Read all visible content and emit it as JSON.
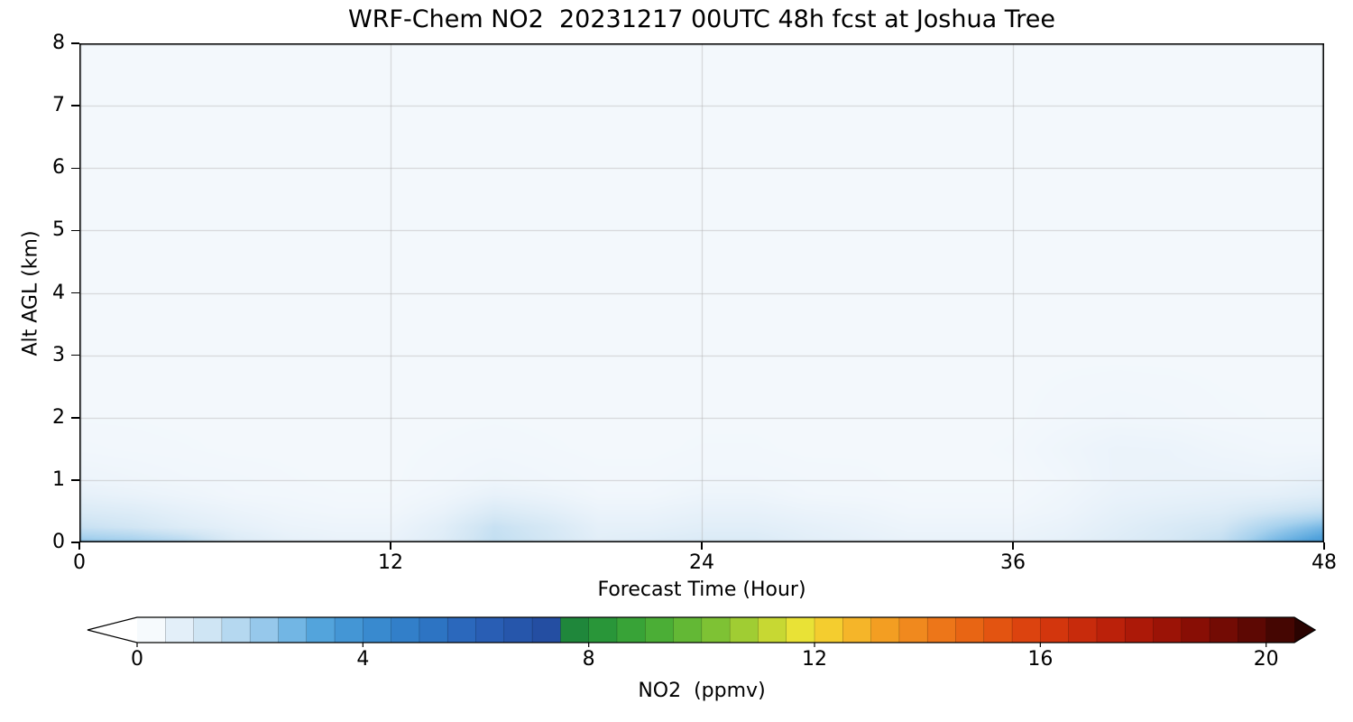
{
  "accent_colors": {
    "plot_background_tint": "#f3f8fc",
    "gridline": "#b4b4b4",
    "axis": "#000000"
  },
  "chart_data": {
    "type": "heatmap",
    "title": "WRF-Chem NO2  20231217 00UTC 48h fcst at Joshua Tree",
    "xlabel": "Forecast Time (Hour)",
    "ylabel": "Alt AGL (km)",
    "colorbar_label": "NO2  (ppmv)",
    "xlim": [
      0,
      48
    ],
    "ylim": [
      0,
      8
    ],
    "x_ticks": [
      0,
      12,
      24,
      36,
      48
    ],
    "y_ticks": [
      0,
      1,
      2,
      3,
      4,
      5,
      6,
      7,
      8
    ],
    "gridlines": {
      "x": [
        12,
        24,
        36
      ],
      "y": [
        1,
        2,
        3,
        4,
        5,
        6,
        7
      ]
    },
    "colorbar_ticks": [
      0,
      4,
      8,
      12,
      16,
      20
    ],
    "colorbar_range": [
      0,
      20.5
    ],
    "colorbar_cell_step": 0.5,
    "colorbar_extend": "both",
    "colormap_stops": [
      [
        0,
        "#ffffff"
      ],
      [
        0.6,
        "#e9f2fa"
      ],
      [
        1.2,
        "#d2e6f4"
      ],
      [
        2,
        "#a8d2ee"
      ],
      [
        2.6,
        "#7cbbe6"
      ],
      [
        3.2,
        "#55a5dd"
      ],
      [
        4,
        "#3c8fd2"
      ],
      [
        5,
        "#2e7ac6"
      ],
      [
        6,
        "#2a62b8"
      ],
      [
        7.49,
        "#234a9e"
      ],
      [
        7.51,
        "#1a7f3c"
      ],
      [
        8.5,
        "#2e9e38"
      ],
      [
        9.5,
        "#55b335"
      ],
      [
        10.5,
        "#8cc733"
      ],
      [
        11.2,
        "#c4d733"
      ],
      [
        11.8,
        "#ece336"
      ],
      [
        12.4,
        "#f6c52d"
      ],
      [
        13.2,
        "#f3a023"
      ],
      [
        14,
        "#ef7f1b"
      ],
      [
        15,
        "#e65c12"
      ],
      [
        16,
        "#d83b0e"
      ],
      [
        17,
        "#c3250b"
      ],
      [
        18,
        "#a41507"
      ],
      [
        19,
        "#7e0c04"
      ],
      [
        20,
        "#520702"
      ],
      [
        21,
        "#1c0201"
      ]
    ],
    "grid": {
      "x_hours": [
        0,
        2,
        4,
        6,
        8,
        10,
        12,
        14,
        16,
        18,
        20,
        22,
        24,
        26,
        28,
        30,
        32,
        34,
        36,
        38,
        40,
        42,
        44,
        46,
        48
      ],
      "y_km": [
        0,
        0.25,
        0.5,
        0.75,
        1.0,
        1.5,
        2.0,
        3.0,
        8.0
      ],
      "values_ppmv": [
        [
          2.4,
          2.2,
          1.8,
          1.0,
          0.7,
          0.6,
          0.6,
          0.9,
          1.5,
          1.2,
          0.8,
          0.9,
          1.0,
          1.0,
          0.8,
          0.7,
          0.6,
          0.6,
          0.6,
          0.7,
          0.9,
          1.1,
          1.5,
          2.7,
          3.7
        ],
        [
          1.4,
          1.2,
          0.9,
          0.7,
          0.55,
          0.5,
          0.5,
          0.8,
          1.4,
          1.1,
          0.7,
          0.7,
          0.8,
          0.8,
          0.7,
          0.6,
          0.5,
          0.5,
          0.5,
          0.6,
          0.8,
          1.0,
          1.2,
          2.0,
          2.7
        ],
        [
          1.0,
          0.9,
          0.7,
          0.55,
          0.45,
          0.4,
          0.4,
          0.6,
          1.0,
          0.8,
          0.55,
          0.55,
          0.65,
          0.65,
          0.55,
          0.5,
          0.4,
          0.4,
          0.4,
          0.5,
          0.7,
          0.8,
          0.9,
          1.2,
          1.5
        ],
        [
          0.7,
          0.6,
          0.5,
          0.4,
          0.38,
          0.35,
          0.35,
          0.45,
          0.65,
          0.55,
          0.4,
          0.4,
          0.5,
          0.5,
          0.4,
          0.38,
          0.35,
          0.35,
          0.35,
          0.45,
          0.6,
          0.65,
          0.7,
          0.75,
          0.9
        ],
        [
          0.5,
          0.45,
          0.4,
          0.38,
          0.35,
          0.33,
          0.33,
          0.38,
          0.45,
          0.4,
          0.36,
          0.36,
          0.4,
          0.4,
          0.37,
          0.36,
          0.33,
          0.33,
          0.33,
          0.4,
          0.55,
          0.57,
          0.57,
          0.55,
          0.65
        ],
        [
          0.38,
          0.36,
          0.35,
          0.33,
          0.33,
          0.33,
          0.33,
          0.35,
          0.37,
          0.35,
          0.33,
          0.33,
          0.35,
          0.35,
          0.33,
          0.33,
          0.33,
          0.33,
          0.35,
          0.45,
          0.55,
          0.53,
          0.45,
          0.4,
          0.4
        ],
        [
          0.34,
          0.34,
          0.33,
          0.33,
          0.33,
          0.33,
          0.33,
          0.33,
          0.34,
          0.33,
          0.33,
          0.33,
          0.33,
          0.33,
          0.33,
          0.33,
          0.33,
          0.33,
          0.33,
          0.37,
          0.4,
          0.38,
          0.35,
          0.34,
          0.34
        ],
        [
          0.33,
          0.33,
          0.33,
          0.33,
          0.33,
          0.33,
          0.33,
          0.33,
          0.33,
          0.33,
          0.33,
          0.33,
          0.33,
          0.33,
          0.33,
          0.33,
          0.33,
          0.33,
          0.33,
          0.33,
          0.33,
          0.33,
          0.33,
          0.33,
          0.33
        ],
        [
          0.33,
          0.33,
          0.33,
          0.33,
          0.33,
          0.33,
          0.33,
          0.33,
          0.33,
          0.33,
          0.33,
          0.33,
          0.33,
          0.33,
          0.33,
          0.33,
          0.33,
          0.33,
          0.33,
          0.33,
          0.33,
          0.33,
          0.33,
          0.33,
          0.33
        ]
      ]
    }
  }
}
